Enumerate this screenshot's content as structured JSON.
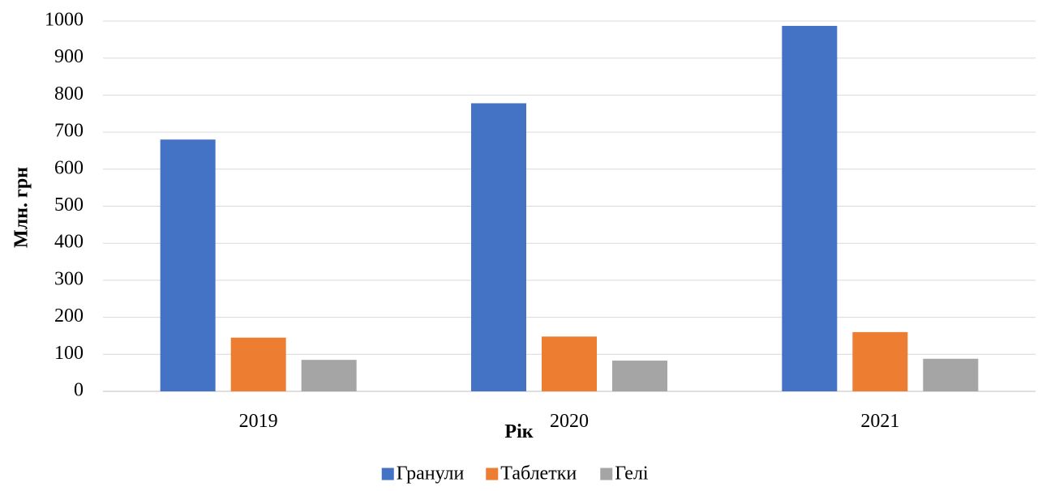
{
  "chart_data": {
    "type": "bar",
    "title": "",
    "xlabel": "Рік",
    "ylabel": "Млн. грн",
    "categories": [
      "2019",
      "2020",
      "2021"
    ],
    "series": [
      {
        "name": "Гранули",
        "color": "#4472C4",
        "values": [
          680,
          778,
          987
        ]
      },
      {
        "name": "Таблетки",
        "color": "#ED7D31",
        "values": [
          145,
          148,
          160
        ]
      },
      {
        "name": "Гелі",
        "color": "#A5A5A5",
        "values": [
          85,
          83,
          88
        ]
      }
    ],
    "ylim": [
      0,
      1000
    ],
    "yticks": [
      0,
      100,
      200,
      300,
      400,
      500,
      600,
      700,
      800,
      900,
      1000
    ],
    "grid": true,
    "legend_position": "bottom"
  }
}
